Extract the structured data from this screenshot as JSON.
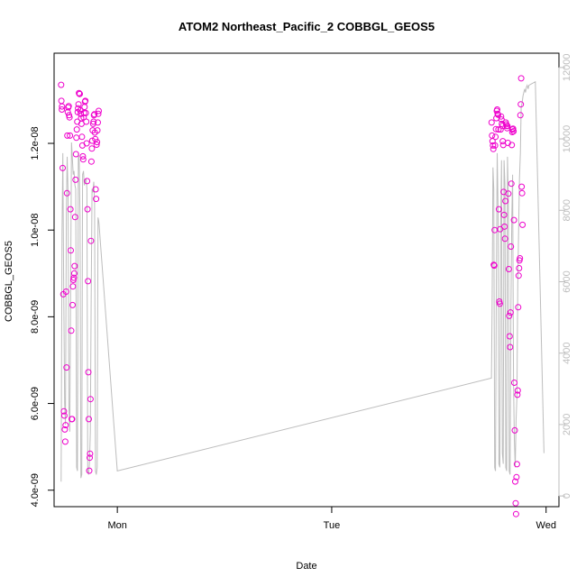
{
  "chart_data": {
    "type": "scatter",
    "title": "ATOM2 Northeast_Pacific_2 COBBGL_GEOS5",
    "xlabel": "Date",
    "ylabel": "COBBGL_GEOS5",
    "xlim": [
      -0.295,
      2.06
    ],
    "ylim": [
      3.62e-09,
      1.408e-08
    ],
    "x_ticks": [
      {
        "value": 0,
        "label": "Mon"
      },
      {
        "value": 1,
        "label": "Tue"
      },
      {
        "value": 2,
        "label": "Wed"
      }
    ],
    "y_ticks": [
      {
        "value": 4e-09,
        "label": "4.0e-09"
      },
      {
        "value": 6e-09,
        "label": "6.0e-09"
      },
      {
        "value": 8e-09,
        "label": "8.0e-09"
      },
      {
        "value": 1e-08,
        "label": "1.0e-08"
      },
      {
        "value": 1.2e-08,
        "label": "1.2e-08"
      }
    ],
    "y2lim": [
      -300,
      12400
    ],
    "y2_ticks": [
      {
        "value": 0,
        "label": "0"
      },
      {
        "value": 2000,
        "label": "2000"
      },
      {
        "value": 4000,
        "label": "4000"
      },
      {
        "value": 6000,
        "label": "6000"
      },
      {
        "value": 8000,
        "label": "8000"
      },
      {
        "value": 10000,
        "label": "10000"
      },
      {
        "value": 12000,
        "label": "12000"
      }
    ],
    "grid": false,
    "colors": {
      "points": "#ee00cc",
      "secondary_line": "#bdbdbd"
    },
    "series": [
      {
        "type": "scatter",
        "points": [
          [
            -0.262,
            1.335e-08
          ],
          [
            -0.261,
            1.298e-08
          ],
          [
            -0.259,
            1.278e-08
          ],
          [
            -0.258,
            1.285e-08
          ],
          [
            -0.255,
            1.143e-08
          ],
          [
            -0.252,
            8.52e-09
          ],
          [
            -0.249,
            5.82e-09
          ],
          [
            -0.247,
            5.72e-09
          ],
          [
            -0.245,
            5.4e-09
          ],
          [
            -0.243,
            5.12e-09
          ],
          [
            -0.241,
            5.5e-09
          ],
          [
            -0.239,
            8.58e-09
          ],
          [
            -0.237,
            6.83e-09
          ],
          [
            -0.235,
            1.085e-08
          ],
          [
            -0.233,
            1.218e-08
          ],
          [
            -0.231,
            1.272e-08
          ],
          [
            -0.229,
            1.283e-08
          ],
          [
            -0.227,
            1.286e-08
          ],
          [
            -0.225,
            1.265e-08
          ],
          [
            -0.223,
            1.26e-08
          ],
          [
            -0.221,
            1.218e-08
          ],
          [
            -0.219,
            1.048e-08
          ],
          [
            -0.217,
            9.53e-09
          ],
          [
            -0.215,
            7.68e-09
          ],
          [
            -0.213,
            5.64e-09
          ],
          [
            -0.211,
            5.64e-09
          ],
          [
            -0.209,
            8.27e-09
          ],
          [
            -0.207,
            8.7e-09
          ],
          [
            -0.205,
            8.85e-09
          ],
          [
            -0.203,
            8.9e-09
          ],
          [
            -0.201,
            9e-09
          ],
          [
            -0.199,
            9.17e-09
          ],
          [
            -0.197,
            1.03e-08
          ],
          [
            -0.195,
            1.116e-08
          ],
          [
            -0.193,
            1.175e-08
          ],
          [
            -0.191,
            1.213e-08
          ],
          [
            -0.189,
            1.232e-08
          ],
          [
            -0.187,
            1.25e-08
          ],
          [
            -0.185,
            1.272e-08
          ],
          [
            -0.183,
            1.281e-08
          ],
          [
            -0.181,
            1.29e-08
          ],
          [
            -0.179,
            1.316e-08
          ],
          [
            -0.177,
            1.314e-08
          ],
          [
            -0.175,
            1.314e-08
          ],
          [
            -0.173,
            1.276e-08
          ],
          [
            -0.171,
            1.268e-08
          ],
          [
            -0.169,
            1.258e-08
          ],
          [
            -0.167,
            1.245e-08
          ],
          [
            -0.165,
            1.215e-08
          ],
          [
            -0.163,
            1.195e-08
          ],
          [
            -0.161,
            1.17e-08
          ],
          [
            -0.159,
            1.163e-08
          ],
          [
            -0.157,
            1.26e-08
          ],
          [
            -0.155,
            1.27e-08
          ],
          [
            -0.153,
            1.284e-08
          ],
          [
            -0.151,
            1.296e-08
          ],
          [
            -0.149,
            1.298e-08
          ],
          [
            -0.147,
            1.27e-08
          ],
          [
            -0.145,
            1.25e-08
          ],
          [
            -0.143,
            1.2e-08
          ],
          [
            -0.141,
            1.113e-08
          ],
          [
            -0.139,
            1.048e-08
          ],
          [
            -0.137,
            8.82e-09
          ],
          [
            -0.135,
            6.72e-09
          ],
          [
            -0.133,
            5.64e-09
          ],
          [
            -0.131,
            4.45e-09
          ],
          [
            -0.129,
            4.75e-09
          ],
          [
            -0.127,
            4.84e-09
          ],
          [
            -0.125,
            6.1e-09
          ],
          [
            -0.123,
            9.75e-09
          ],
          [
            -0.121,
            1.158e-08
          ],
          [
            -0.119,
            1.188e-08
          ],
          [
            -0.117,
            1.206e-08
          ],
          [
            -0.115,
            1.23e-08
          ],
          [
            -0.113,
            1.245e-08
          ],
          [
            -0.111,
            1.25e-08
          ],
          [
            -0.109,
            1.265e-08
          ],
          [
            -0.107,
            1.267e-08
          ],
          [
            -0.105,
            1.225e-08
          ],
          [
            -0.103,
            1.21e-08
          ],
          [
            -0.101,
            1.094e-08
          ],
          [
            -0.099,
            1.072e-08
          ],
          [
            -0.097,
            1.197e-08
          ],
          [
            -0.095,
            1.203e-08
          ],
          [
            -0.093,
            1.23e-08
          ],
          [
            -0.091,
            1.248e-08
          ],
          [
            -0.089,
            1.268e-08
          ],
          [
            -0.087,
            1.275e-08
          ],
          [
            1.746,
            1.248e-08
          ],
          [
            1.748,
            1.218e-08
          ],
          [
            1.75,
            1.205e-08
          ],
          [
            1.752,
            1.195e-08
          ],
          [
            1.754,
            1.187e-08
          ],
          [
            1.756,
            9.2e-09
          ],
          [
            1.758,
            9.18e-09
          ],
          [
            1.76,
            1e-08
          ],
          [
            1.762,
            1.195e-08
          ],
          [
            1.764,
            1.215e-08
          ],
          [
            1.766,
            1.233e-08
          ],
          [
            1.768,
            1.258e-08
          ],
          [
            1.77,
            1.275e-08
          ],
          [
            1.772,
            1.278e-08
          ],
          [
            1.774,
            1.268e-08
          ],
          [
            1.776,
            1.266e-08
          ],
          [
            1.778,
            1.232e-08
          ],
          [
            1.78,
            1.048e-08
          ],
          [
            1.782,
            8.35e-09
          ],
          [
            1.784,
            8.3e-09
          ],
          [
            1.786,
            1.002e-08
          ],
          [
            1.788,
            1.232e-08
          ],
          [
            1.79,
            1.262e-08
          ],
          [
            1.792,
            1.255e-08
          ],
          [
            1.794,
            1.245e-08
          ],
          [
            1.796,
            1.24e-08
          ],
          [
            1.798,
            1.205e-08
          ],
          [
            1.8,
            1.196e-08
          ],
          [
            1.802,
            1.088e-08
          ],
          [
            1.804,
            1.035e-08
          ],
          [
            1.806,
            1.008e-08
          ],
          [
            1.808,
            9.8e-09
          ],
          [
            1.81,
            1.067e-08
          ],
          [
            1.812,
            1.248e-08
          ],
          [
            1.814,
            1.244e-08
          ],
          [
            1.816,
            1.24e-08
          ],
          [
            1.818,
            1.235e-08
          ],
          [
            1.82,
            1.24e-08
          ],
          [
            1.822,
            1.201e-08
          ],
          [
            1.824,
            1.084e-08
          ],
          [
            1.826,
            9.1e-09
          ],
          [
            1.828,
            8.02e-09
          ],
          [
            1.83,
            7.55e-09
          ],
          [
            1.832,
            7.3e-09
          ],
          [
            1.834,
            8.1e-09
          ],
          [
            1.836,
            9.62e-09
          ],
          [
            1.838,
            1.107e-08
          ],
          [
            1.84,
            1.196e-08
          ],
          [
            1.842,
            1.226e-08
          ],
          [
            1.844,
            1.232e-08
          ],
          [
            1.846,
            1.234e-08
          ],
          [
            1.848,
            1.228e-08
          ],
          [
            1.85,
            1.023e-08
          ],
          [
            1.852,
            6.48e-09
          ],
          [
            1.854,
            5.38e-09
          ],
          [
            1.856,
            4.2e-09
          ],
          [
            1.858,
            3.7e-09
          ],
          [
            1.86,
            3.45e-09
          ],
          [
            1.862,
            4.3e-09
          ],
          [
            1.864,
            4.6e-09
          ],
          [
            1.866,
            6.2e-09
          ],
          [
            1.868,
            6.3e-09
          ],
          [
            1.87,
            8.22e-09
          ],
          [
            1.872,
            8.95e-09
          ],
          [
            1.874,
            9.12e-09
          ],
          [
            1.876,
            9.3e-09
          ],
          [
            1.878,
            9.35e-09
          ],
          [
            1.88,
            1.265e-08
          ],
          [
            1.882,
            1.29e-08
          ],
          [
            1.884,
            1.35e-08
          ],
          [
            1.886,
            1.1e-08
          ],
          [
            1.888,
            1.085e-08
          ],
          [
            1.89,
            1.012e-08
          ]
        ]
      },
      {
        "type": "line",
        "axis": "right",
        "points": [
          [
            -0.262,
            400
          ],
          [
            -0.258,
            7400
          ],
          [
            -0.254,
            9600
          ],
          [
            -0.25,
            5700
          ],
          [
            -0.246,
            2600
          ],
          [
            -0.242,
            2000
          ],
          [
            -0.238,
            7900
          ],
          [
            -0.234,
            9500
          ],
          [
            -0.23,
            8500
          ],
          [
            -0.226,
            2500
          ],
          [
            -0.222,
            1800
          ],
          [
            -0.218,
            5600
          ],
          [
            -0.214,
            9900
          ],
          [
            -0.21,
            9500
          ],
          [
            -0.206,
            9000
          ],
          [
            -0.202,
            9100
          ],
          [
            -0.198,
            8700
          ],
          [
            -0.194,
            8600
          ],
          [
            -0.19,
            800
          ],
          [
            -0.186,
            700
          ],
          [
            -0.182,
            9600
          ],
          [
            -0.178,
            9400
          ],
          [
            -0.174,
            7800
          ],
          [
            -0.17,
            500
          ],
          [
            -0.166,
            600
          ],
          [
            -0.162,
            9000
          ],
          [
            -0.158,
            9100
          ],
          [
            -0.154,
            8700
          ],
          [
            -0.15,
            8800
          ],
          [
            -0.146,
            8900
          ],
          [
            -0.142,
            8600
          ],
          [
            -0.138,
            700
          ],
          [
            -0.134,
            600
          ],
          [
            -0.13,
            900
          ],
          [
            -0.126,
            1800
          ],
          [
            -0.122,
            5400
          ],
          [
            -0.118,
            8600
          ],
          [
            -0.114,
            8500
          ],
          [
            -0.11,
            8800
          ],
          [
            -0.106,
            8200
          ],
          [
            -0.102,
            700
          ],
          [
            -0.098,
            600
          ],
          [
            -0.094,
            800
          ],
          [
            -0.09,
            7800
          ],
          [
            -0.087,
            7700
          ],
          [
            -0.085,
            7600
          ],
          [
            0.0,
            700
          ],
          [
            1.745,
            3300
          ],
          [
            1.748,
            5100
          ],
          [
            1.752,
            9200
          ],
          [
            1.756,
            8600
          ],
          [
            1.76,
            800
          ],
          [
            1.764,
            700
          ],
          [
            1.768,
            6300
          ],
          [
            1.772,
            9600
          ],
          [
            1.776,
            8000
          ],
          [
            1.78,
            900
          ],
          [
            1.784,
            800
          ],
          [
            1.788,
            7500
          ],
          [
            1.792,
            9400
          ],
          [
            1.796,
            1200
          ],
          [
            1.8,
            900
          ],
          [
            1.804,
            9400
          ],
          [
            1.808,
            8700
          ],
          [
            1.812,
            800
          ],
          [
            1.816,
            700
          ],
          [
            1.82,
            9500
          ],
          [
            1.824,
            8300
          ],
          [
            1.828,
            700
          ],
          [
            1.832,
            600
          ],
          [
            1.836,
            5200
          ],
          [
            1.84,
            7800
          ],
          [
            1.844,
            9000
          ],
          [
            1.848,
            3200
          ],
          [
            1.852,
            1600
          ],
          [
            1.856,
            800
          ],
          [
            1.86,
            2100
          ],
          [
            1.864,
            2800
          ],
          [
            1.868,
            5900
          ],
          [
            1.872,
            7500
          ],
          [
            1.876,
            8900
          ],
          [
            1.88,
            9600
          ],
          [
            1.884,
            10900
          ],
          [
            1.888,
            11000
          ],
          [
            1.892,
            11200
          ],
          [
            1.896,
            11300
          ],
          [
            1.9,
            11400
          ],
          [
            1.904,
            11300
          ],
          [
            1.908,
            11450
          ],
          [
            1.912,
            11500
          ],
          [
            1.916,
            11400
          ],
          [
            1.92,
            11500
          ],
          [
            1.95,
            11600
          ],
          [
            1.99,
            1200
          ]
        ]
      }
    ]
  }
}
